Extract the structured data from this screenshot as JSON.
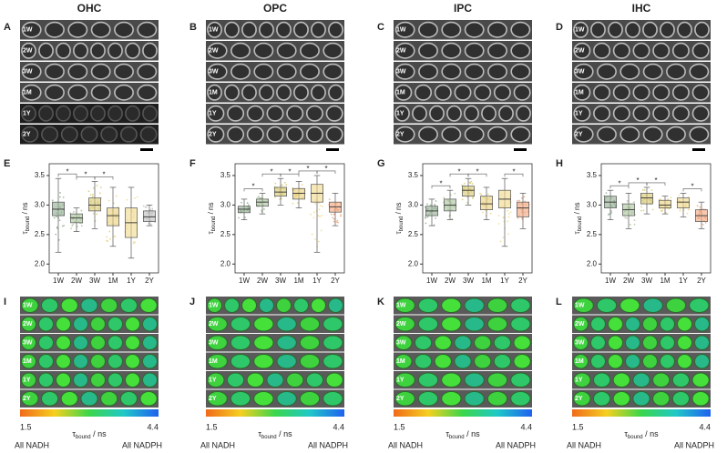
{
  "columns": [
    {
      "header": "OHC",
      "image_panel": "A",
      "plot_panel": "E",
      "color_panel": "I"
    },
    {
      "header": "OPC",
      "image_panel": "B",
      "plot_panel": "F",
      "color_panel": "J"
    },
    {
      "header": "IPC",
      "image_panel": "C",
      "plot_panel": "G",
      "color_panel": "K"
    },
    {
      "header": "IHC",
      "image_panel": "D",
      "plot_panel": "H",
      "color_panel": "L"
    }
  ],
  "row_labels": [
    "1W",
    "2W",
    "3W",
    "1M",
    "1Y",
    "2Y"
  ],
  "y_label": {
    "symbol": "τ",
    "sub": "bound",
    "rest": " / ns"
  },
  "chart_data": [
    {
      "type": "box",
      "categories": [
        "1W",
        "2W",
        "3W",
        "1M",
        "1Y",
        "2Y"
      ],
      "ylim": [
        1.85,
        3.7
      ],
      "yticks": [
        {
          "value": 2,
          "label": "2.0"
        },
        2.5,
        {
          "value": 3,
          "label": "3.0"
        },
        3.5
      ],
      "colors": [
        "#8fab8f",
        "#a9c29a",
        "#d6c76e",
        "#e8cf7a",
        "#f0d88a",
        "#bdbdbd"
      ],
      "boxes": [
        {
          "low": 2.2,
          "q1": 2.82,
          "median": 2.93,
          "q3": 3.05,
          "high": 3.45
        },
        {
          "low": 2.55,
          "q1": 2.7,
          "median": 2.78,
          "q3": 2.85,
          "high": 2.95
        },
        {
          "low": 2.6,
          "q1": 2.9,
          "median": 3.0,
          "q3": 3.12,
          "high": 3.4
        },
        {
          "low": 2.3,
          "q1": 2.65,
          "median": 2.82,
          "q3": 2.95,
          "high": 3.3
        },
        {
          "low": 2.1,
          "q1": 2.45,
          "median": 2.7,
          "q3": 2.95,
          "high": 3.3
        },
        {
          "low": 2.65,
          "q1": 2.72,
          "median": 2.8,
          "q3": 2.9,
          "high": 3.0
        }
      ],
      "brackets": [
        {
          "from": 0,
          "to": 1,
          "label": "*"
        },
        {
          "from": 1,
          "to": 2,
          "label": "*"
        },
        {
          "from": 2,
          "to": 3,
          "label": "*"
        }
      ]
    },
    {
      "type": "box",
      "categories": [
        "1W",
        "2W",
        "3W",
        "1M",
        "1Y",
        "2Y"
      ],
      "ylim": [
        1.85,
        3.7
      ],
      "yticks": [
        {
          "value": 2,
          "label": "2.0"
        },
        2.5,
        {
          "value": 3,
          "label": "3.0"
        },
        3.5
      ],
      "colors": [
        "#8fab8f",
        "#a9c29a",
        "#d6c76e",
        "#e8cf7a",
        "#f0d88a",
        "#f2a37a"
      ],
      "boxes": [
        {
          "low": 2.75,
          "q1": 2.87,
          "median": 2.93,
          "q3": 2.98,
          "high": 3.1
        },
        {
          "low": 2.85,
          "q1": 2.98,
          "median": 3.05,
          "q3": 3.1,
          "high": 3.2
        },
        {
          "low": 3.0,
          "q1": 3.15,
          "median": 3.22,
          "q3": 3.3,
          "high": 3.45
        },
        {
          "low": 2.95,
          "q1": 3.1,
          "median": 3.2,
          "q3": 3.28,
          "high": 3.4
        },
        {
          "low": 2.2,
          "q1": 3.05,
          "median": 3.2,
          "q3": 3.35,
          "high": 3.5
        },
        {
          "low": 2.65,
          "q1": 2.88,
          "median": 2.97,
          "q3": 3.05,
          "high": 3.2
        }
      ],
      "brackets": [
        {
          "from": 0,
          "to": 1,
          "label": "*"
        },
        {
          "from": 1,
          "to": 2,
          "label": "*"
        },
        {
          "from": 2,
          "to": 3,
          "label": "*"
        },
        {
          "from": 3,
          "to": 4,
          "label": "*"
        },
        {
          "from": 4,
          "to": 5,
          "label": "*"
        }
      ]
    },
    {
      "type": "box",
      "categories": [
        "1W",
        "2W",
        "3W",
        "1M",
        "1Y",
        "2Y"
      ],
      "ylim": [
        1.85,
        3.7
      ],
      "yticks": [
        {
          "value": 2,
          "label": "2.0"
        },
        2.5,
        {
          "value": 3,
          "label": "3.0"
        },
        3.5
      ],
      "colors": [
        "#8fab8f",
        "#a9c29a",
        "#d6c76e",
        "#e8cf7a",
        "#f0d88a",
        "#f2a37a"
      ],
      "boxes": [
        {
          "low": 2.65,
          "q1": 2.82,
          "median": 2.9,
          "q3": 2.98,
          "high": 3.1
        },
        {
          "low": 2.75,
          "q1": 2.9,
          "median": 3.0,
          "q3": 3.1,
          "high": 3.25
        },
        {
          "low": 3.0,
          "q1": 3.15,
          "median": 3.25,
          "q3": 3.32,
          "high": 3.45
        },
        {
          "low": 2.75,
          "q1": 2.92,
          "median": 3.02,
          "q3": 3.15,
          "high": 3.3
        },
        {
          "low": 2.3,
          "q1": 2.95,
          "median": 3.1,
          "q3": 3.25,
          "high": 3.45
        },
        {
          "low": 2.6,
          "q1": 2.8,
          "median": 2.95,
          "q3": 3.05,
          "high": 3.2
        }
      ],
      "brackets": [
        {
          "from": 0,
          "to": 1,
          "label": "*"
        },
        {
          "from": 1,
          "to": 2,
          "label": "*"
        },
        {
          "from": 2,
          "to": 3,
          "label": "*"
        },
        {
          "from": 4,
          "to": 5,
          "label": "*"
        }
      ]
    },
    {
      "type": "box",
      "categories": [
        "1W",
        "2W",
        "3W",
        "1M",
        "1Y",
        "2Y"
      ],
      "ylim": [
        1.85,
        3.7
      ],
      "yticks": [
        {
          "value": 2,
          "label": "2.0"
        },
        2.5,
        {
          "value": 3,
          "label": "3.0"
        },
        3.5
      ],
      "colors": [
        "#8fab8f",
        "#a9c29a",
        "#d6c76e",
        "#e8cf7a",
        "#f0d88a",
        "#f2a37a"
      ],
      "boxes": [
        {
          "low": 2.75,
          "q1": 2.95,
          "median": 3.05,
          "q3": 3.15,
          "high": 3.25
        },
        {
          "low": 2.6,
          "q1": 2.82,
          "median": 2.92,
          "q3": 3.02,
          "high": 3.2
        },
        {
          "low": 2.85,
          "q1": 3.02,
          "median": 3.12,
          "q3": 3.2,
          "high": 3.3
        },
        {
          "low": 2.85,
          "q1": 2.95,
          "median": 3.0,
          "q3": 3.08,
          "high": 3.15
        },
        {
          "low": 2.8,
          "q1": 2.95,
          "median": 3.05,
          "q3": 3.12,
          "high": 3.2
        },
        {
          "low": 2.6,
          "q1": 2.72,
          "median": 2.82,
          "q3": 2.92,
          "high": 3.05
        }
      ],
      "brackets": [
        {
          "from": 0,
          "to": 1,
          "label": "*"
        },
        {
          "from": 1,
          "to": 2,
          "label": "*"
        },
        {
          "from": 2,
          "to": 3,
          "label": "*"
        },
        {
          "from": 4,
          "to": 5,
          "label": "*"
        }
      ]
    }
  ],
  "colorbar": {
    "min": {
      "value": 1.5,
      "label": "1.5"
    },
    "max": {
      "value": 4.4,
      "label": "4.4"
    },
    "min_label": "All NADH",
    "max_label": "All NADPH"
  }
}
